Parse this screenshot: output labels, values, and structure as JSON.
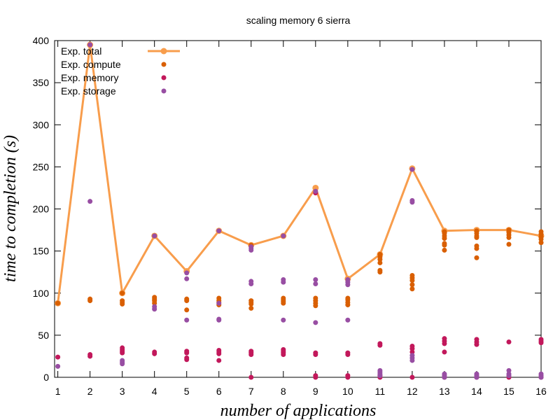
{
  "chart_data": {
    "type": "scatter",
    "title": "scaling memory 6 sierra",
    "xlabel": "number of applications",
    "ylabel": "time to completion (s)",
    "xlim": [
      0.9,
      16
    ],
    "ylim": [
      0,
      400
    ],
    "x_ticks": [
      1,
      2,
      3,
      4,
      5,
      6,
      7,
      8,
      9,
      10,
      11,
      12,
      13,
      14,
      15,
      16
    ],
    "y_ticks": [
      0,
      50,
      100,
      150,
      200,
      250,
      300,
      350,
      400
    ],
    "grid": false,
    "legend_position": "top-left",
    "series": [
      {
        "name": "Exp. total",
        "style": "line",
        "color": "#f89d4c",
        "x": [
          1,
          2,
          3,
          4,
          5,
          6,
          7,
          8,
          9,
          10,
          11,
          12,
          13,
          14,
          15,
          16
        ],
        "y": [
          88,
          395,
          100,
          168,
          126,
          174,
          157,
          168,
          225,
          117,
          146,
          248,
          174,
          175,
          175,
          168
        ]
      },
      {
        "name": "Exp. compute",
        "style": "points",
        "color": "#d95f02",
        "points": [
          [
            1,
            88
          ],
          [
            2,
            91
          ],
          [
            2,
            93
          ],
          [
            3,
            87
          ],
          [
            3,
            89
          ],
          [
            3,
            91
          ],
          [
            3,
            100
          ],
          [
            4,
            88
          ],
          [
            4,
            91
          ],
          [
            4,
            93
          ],
          [
            4,
            95
          ],
          [
            4,
            168
          ],
          [
            5,
            80
          ],
          [
            5,
            91
          ],
          [
            5,
            93
          ],
          [
            6,
            86
          ],
          [
            6,
            89
          ],
          [
            6,
            91
          ],
          [
            6,
            94
          ],
          [
            7,
            82
          ],
          [
            7,
            87
          ],
          [
            7,
            89
          ],
          [
            7,
            91
          ],
          [
            7,
            157
          ],
          [
            8,
            88
          ],
          [
            8,
            90
          ],
          [
            8,
            92
          ],
          [
            8,
            94
          ],
          [
            8,
            168
          ],
          [
            9,
            85
          ],
          [
            9,
            88
          ],
          [
            9,
            91
          ],
          [
            9,
            94
          ],
          [
            10,
            86
          ],
          [
            10,
            89
          ],
          [
            10,
            92
          ],
          [
            10,
            94
          ],
          [
            11,
            125
          ],
          [
            11,
            127
          ],
          [
            11,
            136
          ],
          [
            11,
            140
          ],
          [
            11,
            143
          ],
          [
            11,
            146
          ],
          [
            12,
            105
          ],
          [
            12,
            110
          ],
          [
            12,
            115
          ],
          [
            12,
            118
          ],
          [
            12,
            121
          ],
          [
            13,
            151
          ],
          [
            13,
            157
          ],
          [
            13,
            159
          ],
          [
            13,
            165
          ],
          [
            13,
            168
          ],
          [
            13,
            171
          ],
          [
            13,
            173
          ],
          [
            14,
            142
          ],
          [
            14,
            153
          ],
          [
            14,
            156
          ],
          [
            14,
            166
          ],
          [
            14,
            168
          ],
          [
            14,
            171
          ],
          [
            14,
            174
          ],
          [
            15,
            158
          ],
          [
            15,
            166
          ],
          [
            15,
            169
          ],
          [
            15,
            172
          ],
          [
            15,
            175
          ],
          [
            16,
            160
          ],
          [
            16,
            164
          ],
          [
            16,
            167
          ],
          [
            16,
            170
          ],
          [
            16,
            173
          ]
        ]
      },
      {
        "name": "Exp. memory",
        "style": "points",
        "color": "#c2185b",
        "points": [
          [
            1,
            24
          ],
          [
            2,
            25
          ],
          [
            2,
            27
          ],
          [
            2,
            395
          ],
          [
            3,
            29
          ],
          [
            3,
            31
          ],
          [
            3,
            33
          ],
          [
            3,
            35
          ],
          [
            4,
            28
          ],
          [
            4,
            30
          ],
          [
            5,
            21
          ],
          [
            5,
            23
          ],
          [
            5,
            29
          ],
          [
            5,
            31
          ],
          [
            6,
            20
          ],
          [
            6,
            28
          ],
          [
            6,
            30
          ],
          [
            6,
            32
          ],
          [
            7,
            0
          ],
          [
            7,
            27
          ],
          [
            7,
            29
          ],
          [
            7,
            31
          ],
          [
            8,
            27
          ],
          [
            8,
            29
          ],
          [
            8,
            31
          ],
          [
            8,
            33
          ],
          [
            9,
            0
          ],
          [
            9,
            2
          ],
          [
            9,
            27
          ],
          [
            9,
            29
          ],
          [
            9,
            219
          ],
          [
            10,
            0
          ],
          [
            10,
            2
          ],
          [
            10,
            27
          ],
          [
            10,
            29
          ],
          [
            11,
            0
          ],
          [
            11,
            2
          ],
          [
            11,
            38
          ],
          [
            11,
            40
          ],
          [
            12,
            0
          ],
          [
            12,
            30
          ],
          [
            12,
            34
          ],
          [
            12,
            37
          ],
          [
            13,
            0
          ],
          [
            13,
            30
          ],
          [
            13,
            40
          ],
          [
            13,
            43
          ],
          [
            13,
            46
          ],
          [
            14,
            0
          ],
          [
            14,
            39
          ],
          [
            14,
            42
          ],
          [
            14,
            45
          ],
          [
            15,
            0
          ],
          [
            15,
            42
          ],
          [
            16,
            0
          ],
          [
            16,
            41
          ],
          [
            16,
            43
          ],
          [
            16,
            45
          ]
        ]
      },
      {
        "name": "Exp. storage",
        "style": "points",
        "color": "#984ea3",
        "points": [
          [
            1,
            13
          ],
          [
            2,
            209
          ],
          [
            2,
            395
          ],
          [
            3,
            16
          ],
          [
            3,
            18
          ],
          [
            3,
            20
          ],
          [
            4,
            81
          ],
          [
            4,
            84
          ],
          [
            4,
            168
          ],
          [
            5,
            68
          ],
          [
            5,
            117
          ],
          [
            5,
            124
          ],
          [
            6,
            68
          ],
          [
            6,
            69
          ],
          [
            6,
            88
          ],
          [
            6,
            174
          ],
          [
            7,
            111
          ],
          [
            7,
            114
          ],
          [
            7,
            151
          ],
          [
            7,
            153
          ],
          [
            7,
            155
          ],
          [
            8,
            68
          ],
          [
            8,
            113
          ],
          [
            8,
            116
          ],
          [
            8,
            168
          ],
          [
            9,
            65
          ],
          [
            9,
            111
          ],
          [
            9,
            116
          ],
          [
            9,
            221
          ],
          [
            10,
            68
          ],
          [
            10,
            110
          ],
          [
            10,
            113
          ],
          [
            10,
            116
          ],
          [
            11,
            2
          ],
          [
            11,
            4
          ],
          [
            11,
            6
          ],
          [
            11,
            8
          ],
          [
            12,
            20
          ],
          [
            12,
            23
          ],
          [
            12,
            26
          ],
          [
            12,
            208
          ],
          [
            12,
            210
          ],
          [
            12,
            247
          ],
          [
            13,
            0
          ],
          [
            13,
            2
          ],
          [
            13,
            4
          ],
          [
            14,
            0
          ],
          [
            14,
            2
          ],
          [
            14,
            4
          ],
          [
            15,
            2
          ],
          [
            15,
            4
          ],
          [
            15,
            8
          ],
          [
            16,
            0
          ],
          [
            16,
            2
          ],
          [
            16,
            4
          ]
        ]
      }
    ]
  }
}
